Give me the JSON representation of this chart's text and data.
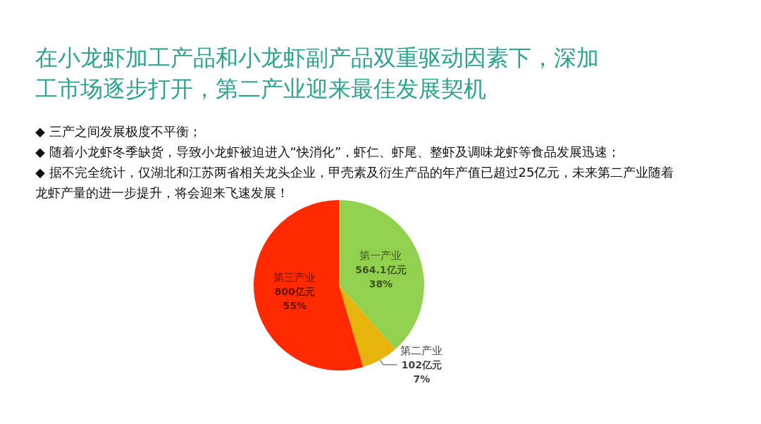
{
  "chart_data": {
    "type": "pie",
    "title": "在小龙虾加工产品和小龙虾副产品双重驱动因素下，深加工市场逐步打开，第二产业迎来最佳发展契机",
    "annotations": [
      "◆ 三产之间发展极度不平衡；",
      "◆ 随着小龙虾冬季缺货，导致小龙虾被迫进入“快消化”，虾仁、虾尾、整虾及调味龙虾等食品发展迅速；",
      "◆ 据不完全统计，仅湖北和江苏两省相关龙头企业，甲壳素及衍生产品的年产值已超过25亿元，未来第二产业随着龙虾产量的进一步提升，将会迎来飞速发展！"
    ],
    "categories": [
      "第一产业",
      "第二产业",
      "第三产业"
    ],
    "values": [
      564.1,
      102,
      800
    ],
    "colors": [
      "#92d050",
      "#e6b40c",
      "#ff2a00"
    ],
    "value_labels": [
      "564.1亿元\n38%",
      "102亿元\n7%",
      "800亿元\n55%"
    ]
  }
}
